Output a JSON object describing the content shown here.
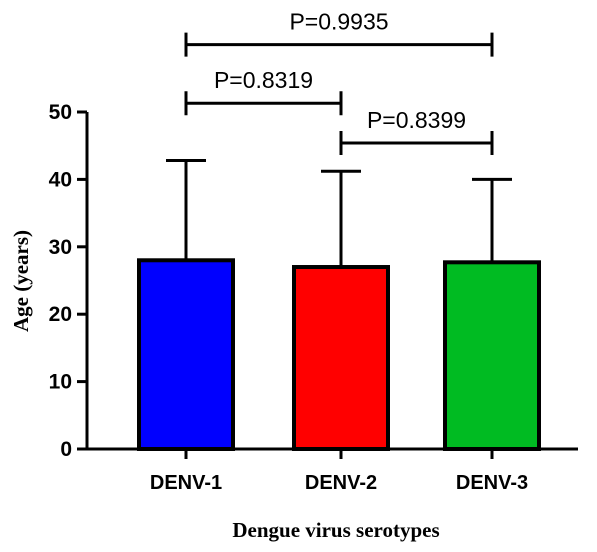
{
  "chart_data": {
    "type": "bar",
    "xlabel": "Dengue virus serotypes",
    "ylabel": "Age (years)",
    "ylim": [
      0,
      50
    ],
    "yticks": [
      0,
      10,
      20,
      30,
      40,
      50
    ],
    "categories": [
      "DENV-1",
      "DENV-2",
      "DENV-3"
    ],
    "values": [
      28,
      27,
      27.7
    ],
    "error_upper": [
      42.8,
      41.2,
      40
    ],
    "colors": [
      "#0000ff",
      "#ff0000",
      "#00bb22"
    ],
    "significance": [
      {
        "from": 0,
        "to": 2,
        "label": "P=0.9935",
        "level": 60
      },
      {
        "from": 0,
        "to": 1,
        "label": "P=0.8319",
        "level": 51.3
      },
      {
        "from": 1,
        "to": 2,
        "label": "P=0.8399",
        "level": 45.4
      }
    ]
  }
}
